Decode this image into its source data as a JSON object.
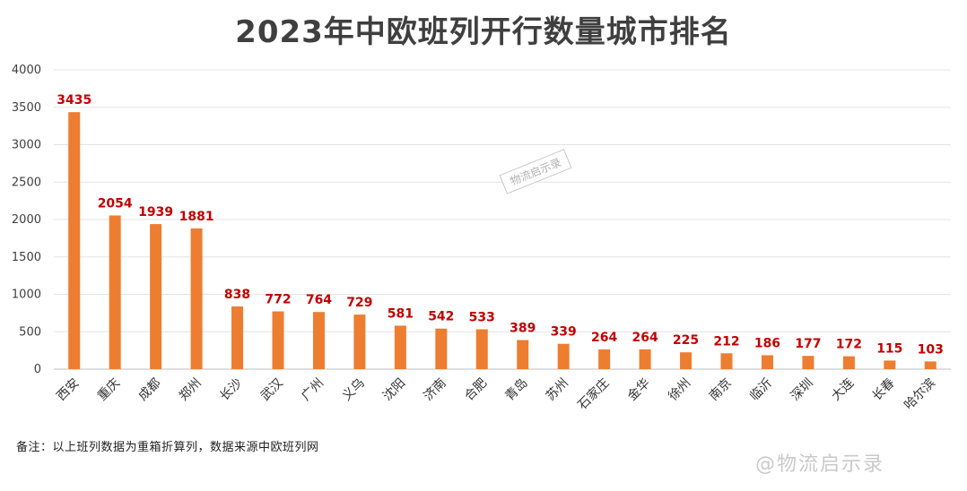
{
  "chart_data": {
    "type": "bar",
    "title": "2023年中欧班列开行数量城市排名",
    "categories": [
      "西安",
      "重庆",
      "成都",
      "郑州",
      "长沙",
      "武汉",
      "广州",
      "义乌",
      "沈阳",
      "济南",
      "合肥",
      "青岛",
      "苏州",
      "石家庄",
      "金华",
      "徐州",
      "南京",
      "临沂",
      "深圳",
      "大连",
      "长春",
      "哈尔滨"
    ],
    "values": [
      3435,
      2054,
      1939,
      1881,
      838,
      772,
      764,
      729,
      581,
      542,
      533,
      389,
      339,
      264,
      264,
      225,
      212,
      186,
      177,
      172,
      115,
      103
    ],
    "ylim": [
      0,
      4000
    ],
    "yticks": [
      0,
      500,
      1000,
      1500,
      2000,
      2500,
      3000,
      3500,
      4000
    ],
    "grid": true,
    "bar_color": "#ed7d31",
    "label_color": "#c00000",
    "note": "备注：以上班列数据为重箱折算列，数据来源中欧班列网"
  },
  "watermarks": {
    "stamp": "物流启示录",
    "bottom": "@物流启示录"
  }
}
